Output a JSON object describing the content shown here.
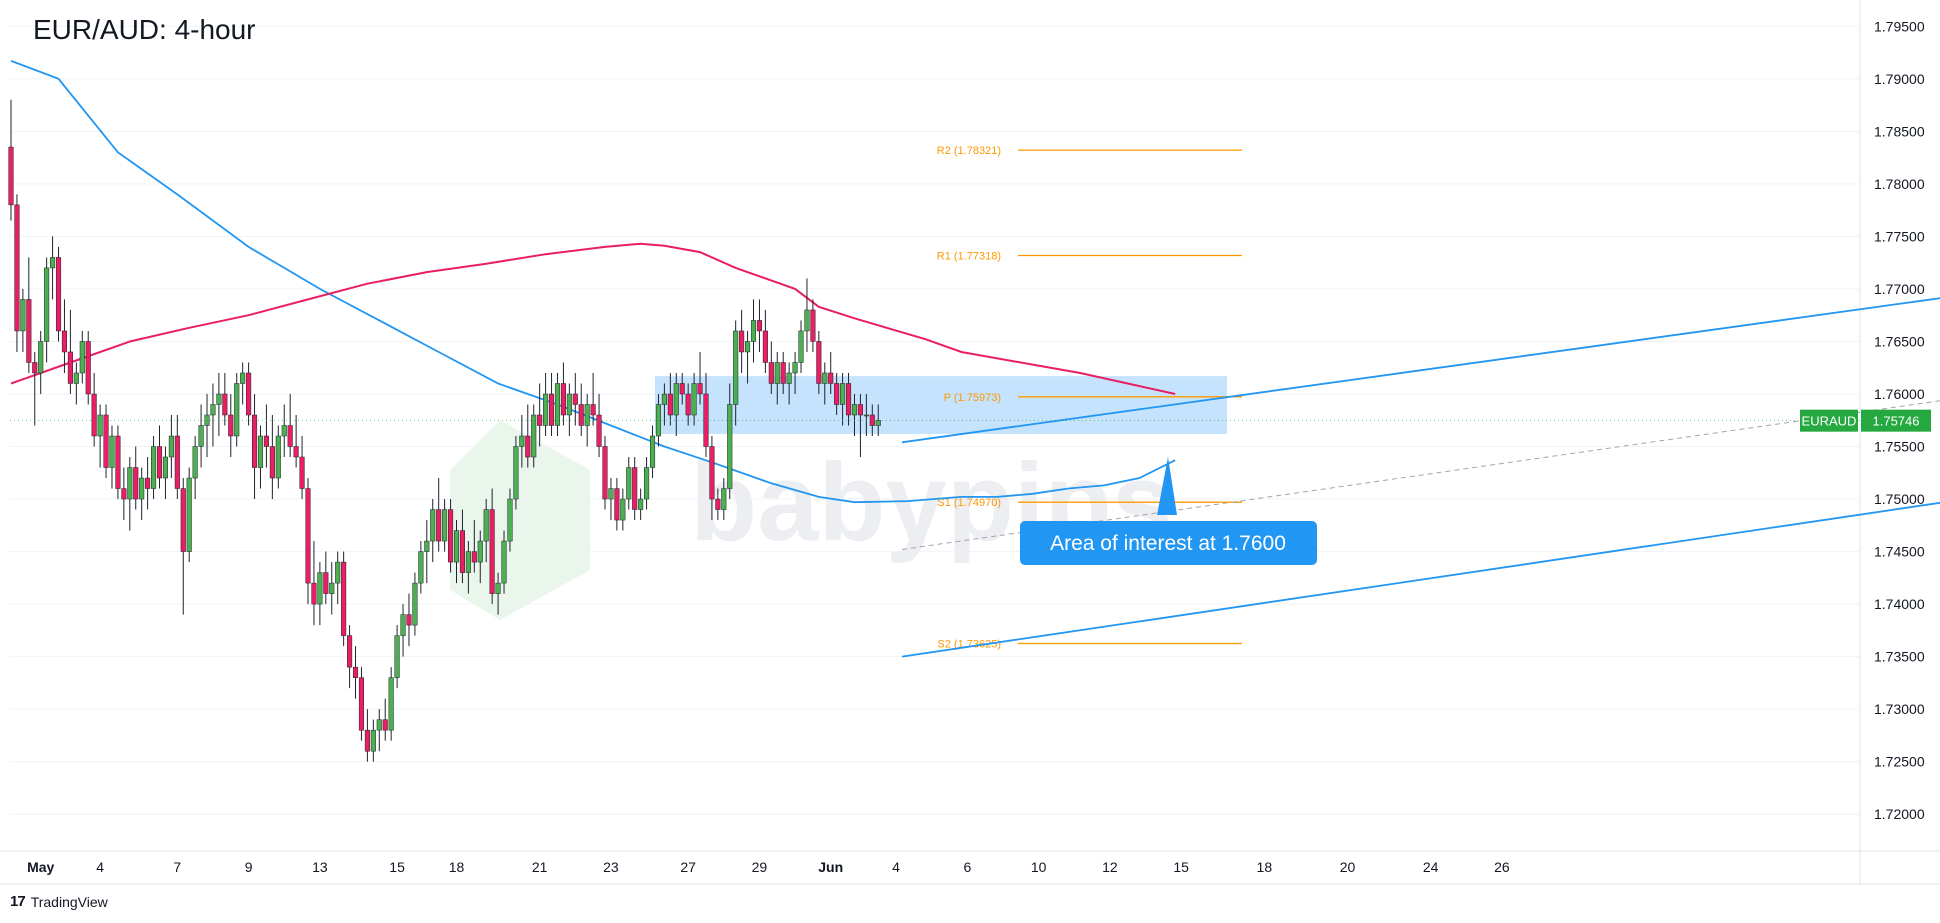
{
  "title": "EUR/AUD: 4-hour",
  "footer": {
    "brand": "TradingView",
    "brand_mark": "17"
  },
  "colors": {
    "bull": "#4caf50",
    "bear": "#e91e63",
    "sma100": "#2196f3",
    "sma200": "#e91e63",
    "channel": "#2196f3",
    "pivot": "#ff9800",
    "zone": "#bbdefb",
    "price_badge": "#26a840",
    "callout": "#2196f3",
    "grid": "#e0e3eb"
  },
  "watermark": "babypips",
  "price_badge": {
    "symbol": "EURAUD",
    "price": "1.75746"
  },
  "callout": {
    "label": "Area of interest at 1.7600"
  },
  "chart_data": {
    "type": "candlestick",
    "timeframe": "4-hour",
    "ylim": [
      1.7165,
      1.7975
    ],
    "y_ticks": [
      "1.79500",
      "1.79000",
      "1.78500",
      "1.78000",
      "1.77500",
      "1.77000",
      "1.76500",
      "1.76000",
      "1.75500",
      "1.75000",
      "1.74500",
      "1.74000",
      "1.73500",
      "1.73000",
      "1.72500",
      "1.72000"
    ],
    "x_ticks": [
      "May",
      "4",
      "7",
      "9",
      "13",
      "15",
      "18",
      "21",
      "23",
      "27",
      "29",
      "Jun",
      "4",
      "6",
      "10",
      "12",
      "15",
      "18",
      "20",
      "24",
      "26"
    ],
    "pivot_levels": [
      {
        "label": "R2 (1.78321)",
        "value": 1.78321
      },
      {
        "label": "R1 (1.77318)",
        "value": 1.77318
      },
      {
        "label": "P (1.75973)",
        "value": 1.75973
      },
      {
        "label": "S1 (1.74970)",
        "value": 1.7497
      },
      {
        "label": "S2 (1.73625)",
        "value": 1.73625
      }
    ],
    "zone": {
      "low": 1.7562,
      "high": 1.7617
    },
    "channel": {
      "upper": [
        [
          150,
          1.7554
        ],
        [
          471,
          1.7806
        ]
      ],
      "lower": [
        [
          150,
          1.735
        ],
        [
          471,
          1.7619
        ]
      ],
      "mid": [
        [
          150,
          1.7452
        ],
        [
          471,
          1.7712
        ]
      ]
    },
    "candles_ohlc": [
      [
        1.7835,
        1.788,
        1.7765,
        1.778
      ],
      [
        1.778,
        1.779,
        1.764,
        1.766
      ],
      [
        1.766,
        1.77,
        1.764,
        1.769
      ],
      [
        1.769,
        1.773,
        1.762,
        1.763
      ],
      [
        1.763,
        1.764,
        1.757,
        1.762
      ],
      [
        1.762,
        1.766,
        1.76,
        1.765
      ],
      [
        1.765,
        1.773,
        1.763,
        1.772
      ],
      [
        1.772,
        1.775,
        1.769,
        1.773
      ],
      [
        1.773,
        1.774,
        1.765,
        1.766
      ],
      [
        1.766,
        1.769,
        1.762,
        1.764
      ],
      [
        1.764,
        1.768,
        1.76,
        1.761
      ],
      [
        1.761,
        1.763,
        1.759,
        1.762
      ],
      [
        1.762,
        1.766,
        1.761,
        1.765
      ],
      [
        1.765,
        1.766,
        1.759,
        1.76
      ],
      [
        1.76,
        1.762,
        1.755,
        1.756
      ],
      [
        1.756,
        1.759,
        1.753,
        1.758
      ],
      [
        1.758,
        1.759,
        1.752,
        1.753
      ],
      [
        1.753,
        1.757,
        1.751,
        1.756
      ],
      [
        1.756,
        1.757,
        1.75,
        1.751
      ],
      [
        1.751,
        1.753,
        1.748,
        1.75
      ],
      [
        1.75,
        1.754,
        1.747,
        1.753
      ],
      [
        1.753,
        1.755,
        1.749,
        1.75
      ],
      [
        1.75,
        1.753,
        1.748,
        1.752
      ],
      [
        1.752,
        1.754,
        1.749,
        1.751
      ],
      [
        1.751,
        1.756,
        1.75,
        1.755
      ],
      [
        1.755,
        1.757,
        1.751,
        1.752
      ],
      [
        1.752,
        1.755,
        1.75,
        1.754
      ],
      [
        1.754,
        1.758,
        1.752,
        1.756
      ],
      [
        1.756,
        1.758,
        1.75,
        1.751
      ],
      [
        1.751,
        1.752,
        1.739,
        1.745
      ],
      [
        1.745,
        1.753,
        1.744,
        1.752
      ],
      [
        1.752,
        1.756,
        1.75,
        1.755
      ],
      [
        1.755,
        1.759,
        1.753,
        1.757
      ],
      [
        1.757,
        1.76,
        1.754,
        1.758
      ],
      [
        1.758,
        1.761,
        1.755,
        1.759
      ],
      [
        1.759,
        1.762,
        1.756,
        1.76
      ],
      [
        1.76,
        1.762,
        1.757,
        1.758
      ],
      [
        1.758,
        1.76,
        1.754,
        1.756
      ],
      [
        1.756,
        1.762,
        1.755,
        1.761
      ],
      [
        1.761,
        1.763,
        1.759,
        1.762
      ],
      [
        1.762,
        1.763,
        1.757,
        1.758
      ],
      [
        1.758,
        1.76,
        1.75,
        1.753
      ],
      [
        1.753,
        1.757,
        1.751,
        1.756
      ],
      [
        1.756,
        1.759,
        1.753,
        1.755
      ],
      [
        1.755,
        1.758,
        1.75,
        1.752
      ],
      [
        1.752,
        1.757,
        1.751,
        1.756
      ],
      [
        1.756,
        1.759,
        1.754,
        1.757
      ],
      [
        1.757,
        1.76,
        1.754,
        1.755
      ],
      [
        1.755,
        1.758,
        1.753,
        1.754
      ],
      [
        1.754,
        1.756,
        1.75,
        1.751
      ],
      [
        1.751,
        1.752,
        1.74,
        1.742
      ],
      [
        1.742,
        1.746,
        1.738,
        1.74
      ],
      [
        1.74,
        1.744,
        1.738,
        1.743
      ],
      [
        1.743,
        1.745,
        1.74,
        1.741
      ],
      [
        1.741,
        1.744,
        1.739,
        1.742
      ],
      [
        1.742,
        1.745,
        1.74,
        1.744
      ],
      [
        1.744,
        1.745,
        1.736,
        1.737
      ],
      [
        1.737,
        1.738,
        1.732,
        1.734
      ],
      [
        1.734,
        1.736,
        1.731,
        1.733
      ],
      [
        1.733,
        1.734,
        1.727,
        1.728
      ],
      [
        1.728,
        1.73,
        1.725,
        1.726
      ],
      [
        1.726,
        1.729,
        1.725,
        1.728
      ],
      [
        1.728,
        1.73,
        1.726,
        1.729
      ],
      [
        1.729,
        1.731,
        1.727,
        1.728
      ],
      [
        1.728,
        1.734,
        1.727,
        1.733
      ],
      [
        1.733,
        1.738,
        1.732,
        1.737
      ],
      [
        1.737,
        1.74,
        1.735,
        1.739
      ],
      [
        1.739,
        1.741,
        1.736,
        1.738
      ],
      [
        1.738,
        1.743,
        1.737,
        1.742
      ],
      [
        1.742,
        1.746,
        1.741,
        1.745
      ],
      [
        1.745,
        1.748,
        1.742,
        1.746
      ],
      [
        1.746,
        1.75,
        1.744,
        1.749
      ],
      [
        1.749,
        1.752,
        1.745,
        1.746
      ],
      [
        1.746,
        1.75,
        1.745,
        1.749
      ],
      [
        1.749,
        1.75,
        1.743,
        1.744
      ],
      [
        1.744,
        1.748,
        1.742,
        1.747
      ],
      [
        1.747,
        1.749,
        1.742,
        1.743
      ],
      [
        1.743,
        1.746,
        1.741,
        1.745
      ],
      [
        1.745,
        1.748,
        1.743,
        1.744
      ],
      [
        1.744,
        1.747,
        1.742,
        1.746
      ],
      [
        1.746,
        1.75,
        1.744,
        1.749
      ],
      [
        1.749,
        1.751,
        1.74,
        1.741
      ],
      [
        1.741,
        1.743,
        1.739,
        1.742
      ],
      [
        1.742,
        1.747,
        1.741,
        1.746
      ],
      [
        1.746,
        1.751,
        1.745,
        1.75
      ],
      [
        1.75,
        1.756,
        1.749,
        1.755
      ],
      [
        1.755,
        1.758,
        1.753,
        1.756
      ],
      [
        1.756,
        1.759,
        1.753,
        1.754
      ],
      [
        1.754,
        1.759,
        1.753,
        1.758
      ],
      [
        1.758,
        1.761,
        1.755,
        1.757
      ],
      [
        1.757,
        1.762,
        1.756,
        1.76
      ],
      [
        1.76,
        1.762,
        1.756,
        1.757
      ],
      [
        1.757,
        1.762,
        1.756,
        1.761
      ],
      [
        1.761,
        1.763,
        1.757,
        1.758
      ],
      [
        1.758,
        1.761,
        1.756,
        1.76
      ],
      [
        1.76,
        1.762,
        1.757,
        1.759
      ],
      [
        1.759,
        1.761,
        1.756,
        1.757
      ],
      [
        1.757,
        1.76,
        1.755,
        1.759
      ],
      [
        1.759,
        1.762,
        1.757,
        1.758
      ],
      [
        1.758,
        1.76,
        1.754,
        1.755
      ],
      [
        1.755,
        1.756,
        1.749,
        1.75
      ],
      [
        1.75,
        1.752,
        1.748,
        1.751
      ],
      [
        1.751,
        1.752,
        1.747,
        1.748
      ],
      [
        1.748,
        1.751,
        1.747,
        1.75
      ],
      [
        1.75,
        1.754,
        1.749,
        1.753
      ],
      [
        1.753,
        1.754,
        1.748,
        1.749
      ],
      [
        1.749,
        1.751,
        1.748,
        1.75
      ],
      [
        1.75,
        1.754,
        1.749,
        1.753
      ],
      [
        1.753,
        1.757,
        1.752,
        1.756
      ],
      [
        1.756,
        1.76,
        1.755,
        1.759
      ],
      [
        1.759,
        1.761,
        1.757,
        1.76
      ],
      [
        1.76,
        1.762,
        1.757,
        1.758
      ],
      [
        1.758,
        1.762,
        1.756,
        1.761
      ],
      [
        1.761,
        1.762,
        1.759,
        1.76
      ],
      [
        1.76,
        1.761,
        1.757,
        1.758
      ],
      [
        1.758,
        1.762,
        1.757,
        1.761
      ],
      [
        1.761,
        1.764,
        1.759,
        1.76
      ],
      [
        1.76,
        1.762,
        1.754,
        1.755
      ],
      [
        1.755,
        1.756,
        1.748,
        1.75
      ],
      [
        1.75,
        1.751,
        1.748,
        1.749
      ],
      [
        1.749,
        1.752,
        1.748,
        1.751
      ],
      [
        1.751,
        1.761,
        1.75,
        1.759
      ],
      [
        1.759,
        1.767,
        1.757,
        1.766
      ],
      [
        1.766,
        1.768,
        1.762,
        1.764
      ],
      [
        1.764,
        1.766,
        1.761,
        1.765
      ],
      [
        1.765,
        1.769,
        1.763,
        1.767
      ],
      [
        1.767,
        1.769,
        1.764,
        1.766
      ],
      [
        1.766,
        1.768,
        1.762,
        1.763
      ],
      [
        1.763,
        1.765,
        1.76,
        1.761
      ],
      [
        1.761,
        1.764,
        1.759,
        1.763
      ],
      [
        1.763,
        1.764,
        1.76,
        1.761
      ],
      [
        1.761,
        1.763,
        1.759,
        1.762
      ],
      [
        1.762,
        1.764,
        1.76,
        1.763
      ],
      [
        1.763,
        1.767,
        1.762,
        1.766
      ],
      [
        1.766,
        1.771,
        1.764,
        1.768
      ],
      [
        1.768,
        1.769,
        1.764,
        1.765
      ],
      [
        1.765,
        1.766,
        1.76,
        1.761
      ],
      [
        1.761,
        1.763,
        1.759,
        1.762
      ],
      [
        1.762,
        1.764,
        1.76,
        1.761
      ],
      [
        1.761,
        1.762,
        1.758,
        1.759
      ],
      [
        1.759,
        1.762,
        1.757,
        1.761
      ],
      [
        1.761,
        1.762,
        1.757,
        1.758
      ],
      [
        1.758,
        1.76,
        1.756,
        1.759
      ],
      [
        1.759,
        1.76,
        1.754,
        1.758
      ],
      [
        1.758,
        1.76,
        1.756,
        1.758
      ],
      [
        1.758,
        1.759,
        1.756,
        1.757
      ],
      [
        1.757,
        1.759,
        1.756,
        1.7575
      ]
    ],
    "sma_blue": [
      [
        0,
        1.7917
      ],
      [
        8,
        1.79
      ],
      [
        18,
        1.783
      ],
      [
        28,
        1.779
      ],
      [
        40,
        1.774
      ],
      [
        52,
        1.77
      ],
      [
        62,
        1.767
      ],
      [
        72,
        1.764
      ],
      [
        82,
        1.761
      ],
      [
        92,
        1.759
      ],
      [
        101,
        1.757
      ],
      [
        110,
        1.755
      ],
      [
        118,
        1.7535
      ],
      [
        128,
        1.7515
      ],
      [
        136,
        1.7502
      ],
      [
        142,
        1.7497
      ],
      [
        151,
        1.7498
      ],
      [
        160,
        1.7502
      ],
      [
        166,
        1.7502
      ],
      [
        172,
        1.7505
      ],
      [
        178,
        1.751
      ],
      [
        184,
        1.7513
      ],
      [
        190,
        1.752
      ],
      [
        196,
        1.7537
      ]
    ],
    "sma_pink": [
      [
        0,
        1.761
      ],
      [
        10,
        1.763
      ],
      [
        20,
        1.765
      ],
      [
        30,
        1.7663
      ],
      [
        40,
        1.7675
      ],
      [
        50,
        1.769
      ],
      [
        60,
        1.7705
      ],
      [
        70,
        1.7716
      ],
      [
        80,
        1.7724
      ],
      [
        90,
        1.7733
      ],
      [
        100,
        1.774
      ],
      [
        106,
        1.7743
      ],
      [
        110,
        1.7741
      ],
      [
        116,
        1.7735
      ],
      [
        122,
        1.772
      ],
      [
        132,
        1.77
      ],
      [
        136,
        1.7683
      ],
      [
        142,
        1.7672
      ],
      [
        148,
        1.7662
      ],
      [
        154,
        1.7652
      ],
      [
        160,
        1.764
      ],
      [
        170,
        1.763
      ],
      [
        180,
        1.762
      ],
      [
        188,
        1.761
      ],
      [
        196,
        1.76
      ]
    ]
  }
}
